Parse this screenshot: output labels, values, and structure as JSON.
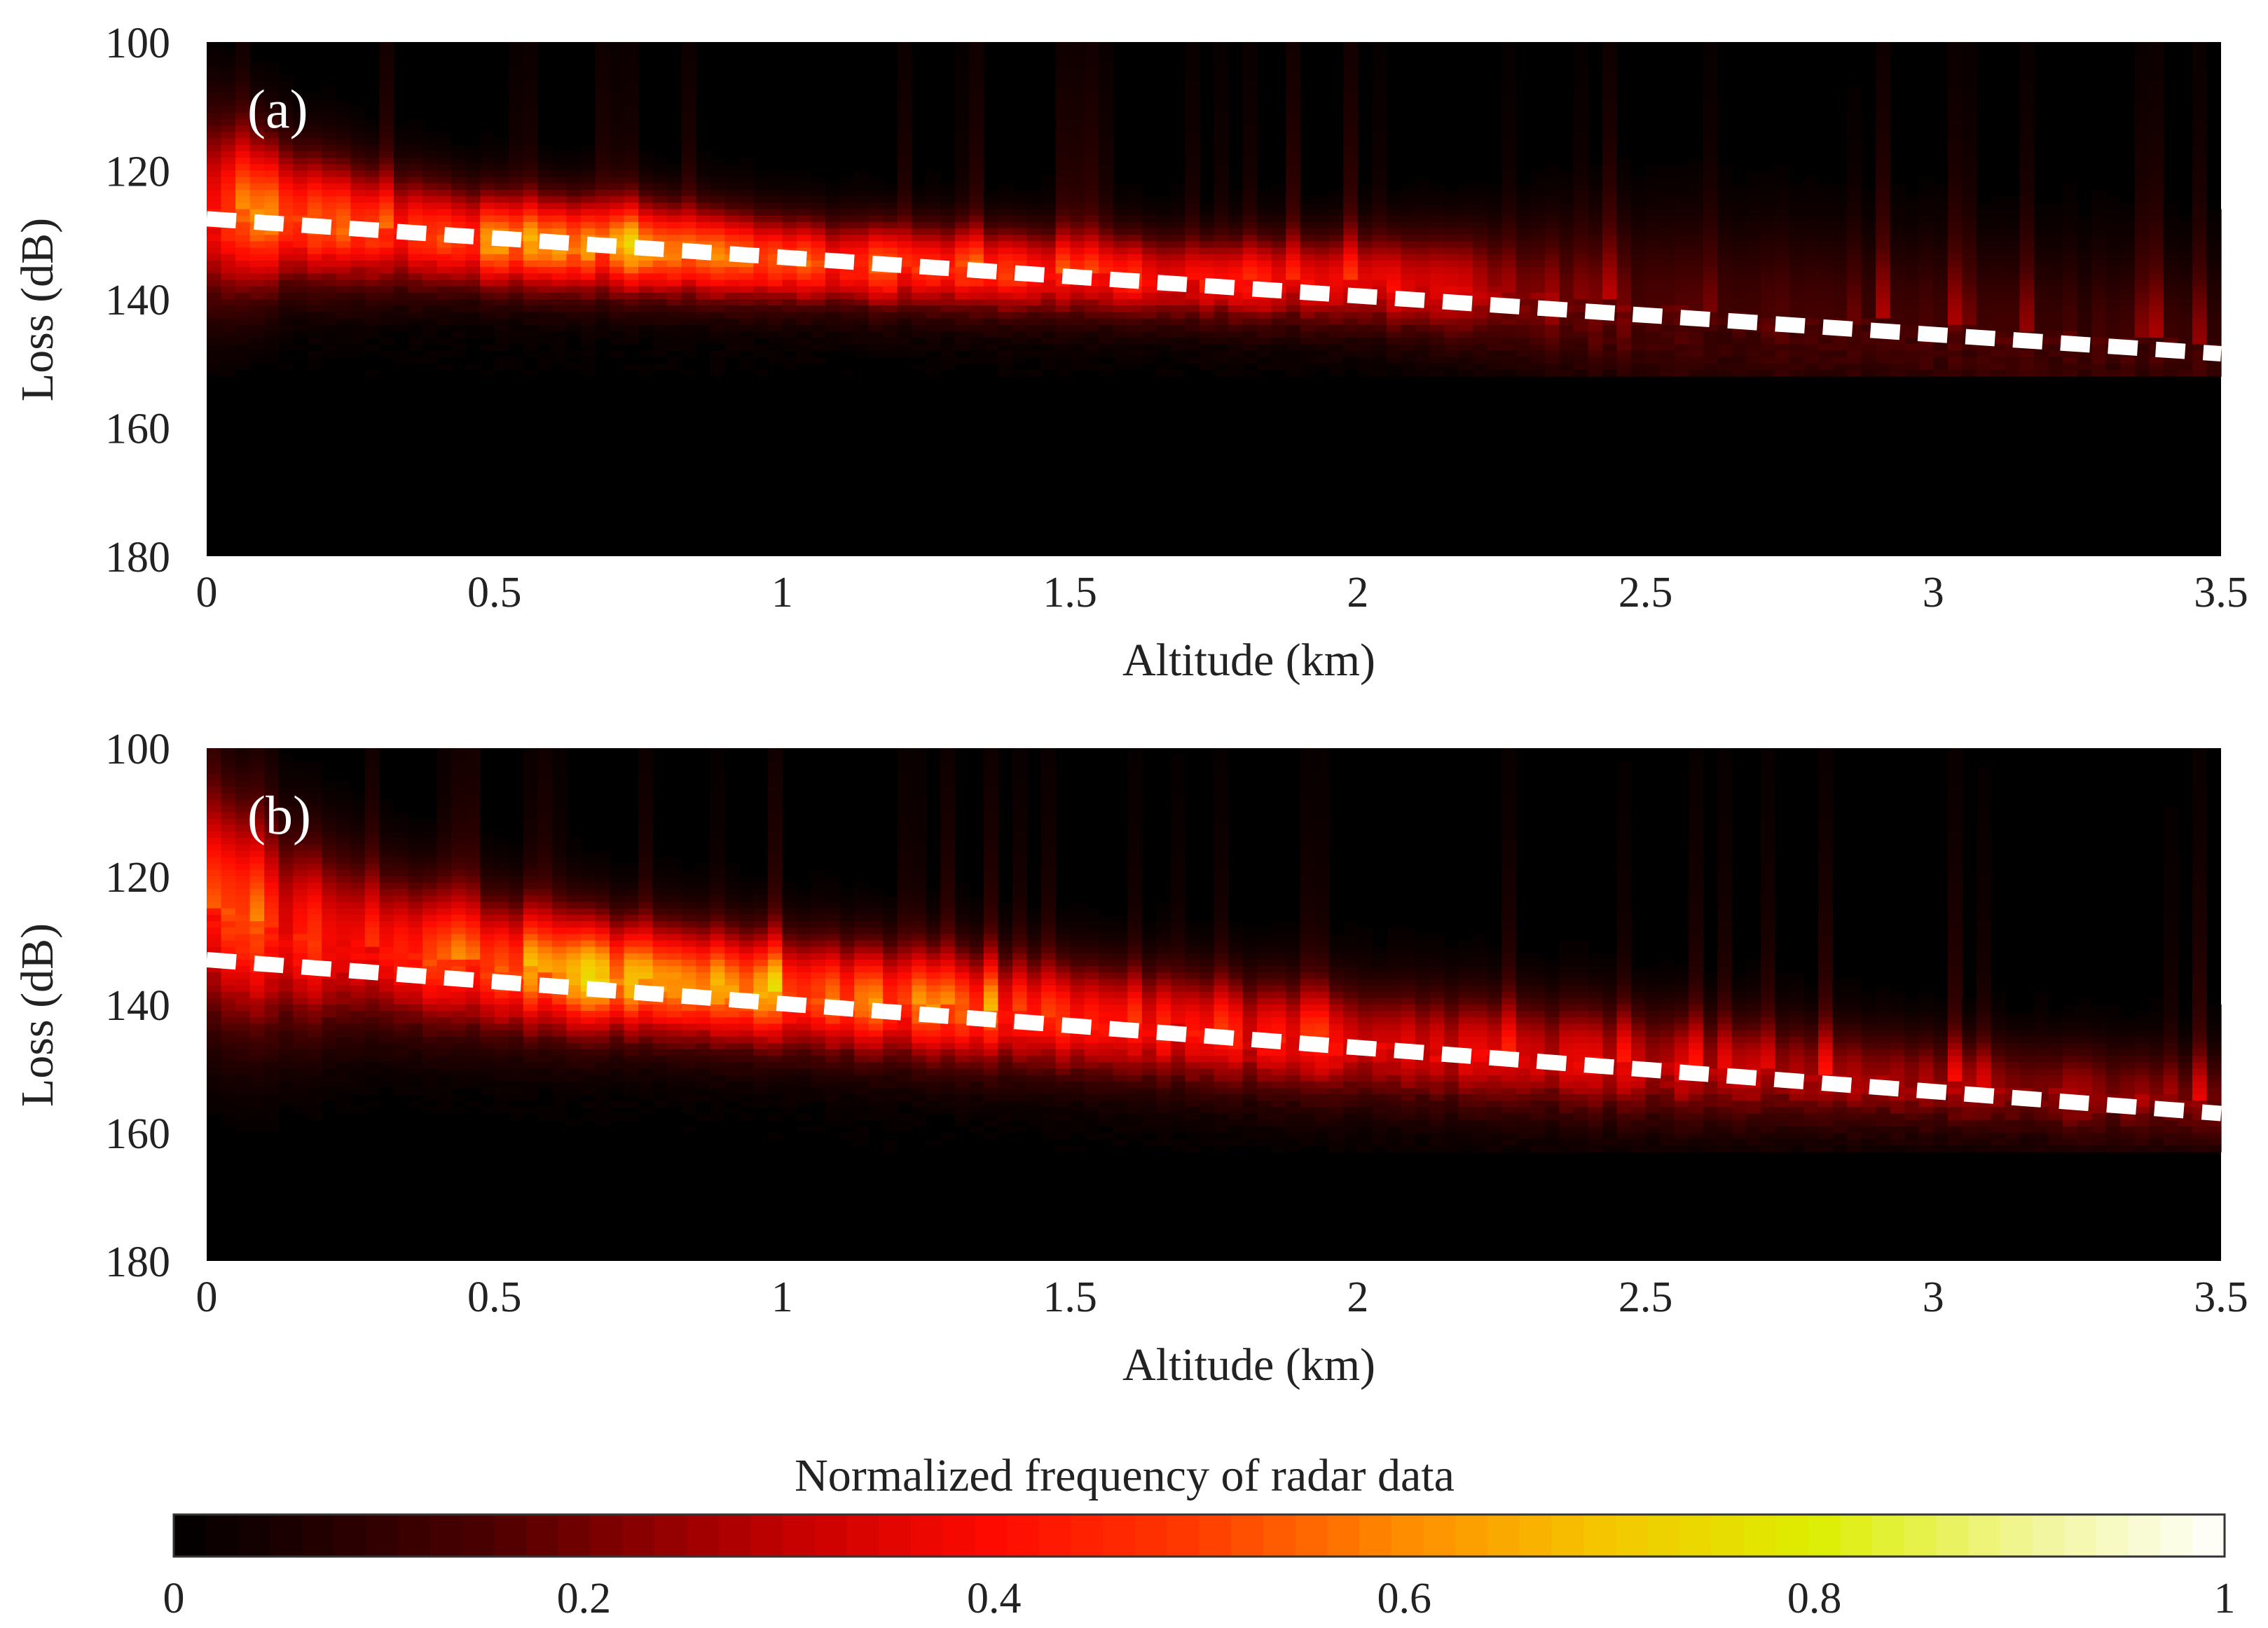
{
  "chart_data": [
    {
      "type": "heatmap",
      "panel_label": "(a)",
      "xlabel": "Altitude (km)",
      "ylabel": "Loss (dB)",
      "xlim": [
        0,
        3.5
      ],
      "ylim": [
        100,
        180
      ],
      "y_reversed": true,
      "x_ticks": [
        "0",
        "0.5",
        "1",
        "1.5",
        "2",
        "2.5",
        "3",
        "3.5"
      ],
      "y_ticks": [
        "100",
        "120",
        "140",
        "160",
        "180"
      ],
      "fit_line": {
        "style": "white-dashed",
        "x": [
          0,
          3.5
        ],
        "y": [
          127.5,
          148.5
        ]
      },
      "density_ridge": {
        "x": [
          0.0,
          0.05,
          0.15,
          0.3,
          0.5,
          0.75,
          1.0,
          1.25,
          1.5,
          1.75,
          2.0,
          2.2,
          2.5,
          3.0,
          3.5
        ],
        "peak_loss": [
          126,
          126,
          127,
          129,
          131,
          132,
          134,
          135,
          136,
          137,
          137,
          138,
          141,
          144,
          147
        ],
        "peak_freq": [
          0.3,
          0.55,
          0.55,
          0.45,
          0.55,
          0.6,
          0.5,
          0.45,
          0.42,
          0.38,
          0.35,
          0.28,
          0.14,
          0.12,
          0.1
        ],
        "spread_db": [
          10,
          9,
          7,
          6,
          5,
          5,
          4.5,
          4.5,
          4.5,
          4.5,
          5,
          6,
          9,
          9,
          9
        ],
        "noise_floor_db": 152
      }
    },
    {
      "type": "heatmap",
      "panel_label": "(b)",
      "xlabel": "Altitude (km)",
      "ylabel": "Loss (dB)",
      "xlim": [
        0,
        3.5
      ],
      "ylim": [
        100,
        180
      ],
      "y_reversed": true,
      "x_ticks": [
        "0",
        "0.5",
        "1",
        "1.5",
        "2",
        "2.5",
        "3",
        "3.5"
      ],
      "y_ticks": [
        "100",
        "120",
        "140",
        "160",
        "180"
      ],
      "fit_line": {
        "style": "white-dashed",
        "x": [
          0,
          3.5
        ],
        "y": [
          133,
          157
        ]
      },
      "density_ridge": {
        "x": [
          0.0,
          0.05,
          0.1,
          0.3,
          0.5,
          0.75,
          1.0,
          1.25,
          1.5,
          1.75,
          2.0,
          2.5,
          3.0,
          3.5
        ],
        "peak_loss": [
          125,
          125,
          128,
          131,
          134,
          136,
          138,
          140,
          142,
          144,
          146,
          149,
          152,
          155
        ],
        "peak_freq": [
          0.35,
          0.55,
          0.4,
          0.4,
          0.5,
          0.7,
          0.55,
          0.5,
          0.42,
          0.38,
          0.35,
          0.3,
          0.25,
          0.2
        ],
        "spread_db": [
          12,
          12,
          11,
          8,
          7,
          6,
          6,
          6,
          6,
          6,
          6,
          6,
          5,
          5
        ],
        "noise_floor_db": 163
      }
    }
  ],
  "colorbar": {
    "title": "Normalized frequency of radar data",
    "range": [
      0,
      1
    ],
    "ticks": [
      "0",
      "0.2",
      "0.4",
      "0.6",
      "0.8",
      "1"
    ],
    "colormap_stops": [
      {
        "v": 0.0,
        "color": "#000000"
      },
      {
        "v": 0.15,
        "color": "#4a0000"
      },
      {
        "v": 0.3,
        "color": "#c40000"
      },
      {
        "v": 0.4,
        "color": "#ff0a00"
      },
      {
        "v": 0.5,
        "color": "#ff3c00"
      },
      {
        "v": 0.6,
        "color": "#ff8c00"
      },
      {
        "v": 0.7,
        "color": "#f5c800"
      },
      {
        "v": 0.8,
        "color": "#dcee00"
      },
      {
        "v": 0.9,
        "color": "#f0f590"
      },
      {
        "v": 1.0,
        "color": "#ffffff"
      }
    ]
  }
}
